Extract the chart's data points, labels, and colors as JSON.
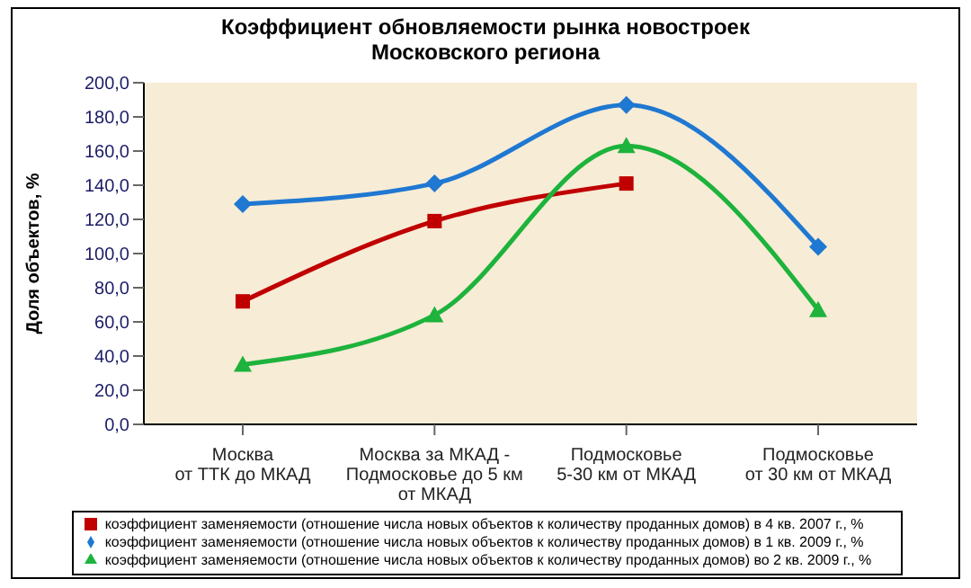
{
  "chart_data": {
    "type": "line",
    "title": "Коэффициент обновляемости рынка новостроек\nМосковского региона",
    "ylabel": "Доля объектов, %",
    "categories": [
      "Москва\nот ТТК до МКАД",
      "Москва за МКАД -\nПодмосковье до 5 км\nот МКАД",
      "Подмосковье\n5-30 км от МКАД",
      "Подмосковье\nот 30 км от МКАД"
    ],
    "series": [
      {
        "name": "коэффициент заменяемости (отношение числа новых объектов к количеству проданных домов) в 4 кв. 2007 г., %",
        "color": "#c00000",
        "marker": "square",
        "values": [
          72,
          119,
          141,
          null
        ]
      },
      {
        "name": "коэффициент заменяемости (отношение числа новых объектов к количеству проданных домов) в 1 кв. 2009 г., %",
        "color": "#1f78d1",
        "marker": "diamond",
        "values": [
          129,
          141,
          187,
          104
        ]
      },
      {
        "name": "коэффициент заменяемости (отношение числа новых объектов к количеству проданных домов) во 2 кв. 2009 г., %",
        "color": "#1db33c",
        "marker": "triangle",
        "values": [
          35,
          64,
          163,
          67
        ]
      }
    ],
    "ylim": [
      0,
      200
    ],
    "yticks": [
      {
        "value": 0,
        "label": "0,0"
      },
      {
        "value": 20,
        "label": "20,0"
      },
      {
        "value": 40,
        "label": "40,0"
      },
      {
        "value": 60,
        "label": "60,0"
      },
      {
        "value": 80,
        "label": "80,0"
      },
      {
        "value": 100,
        "label": "100,0"
      },
      {
        "value": 120,
        "label": "120,0"
      },
      {
        "value": 140,
        "label": "140,0"
      },
      {
        "value": 160,
        "label": "160,0"
      },
      {
        "value": 180,
        "label": "180,0"
      },
      {
        "value": 200,
        "label": "200,0"
      }
    ],
    "grid": false,
    "legend": "bottom",
    "line_style": "solid"
  }
}
